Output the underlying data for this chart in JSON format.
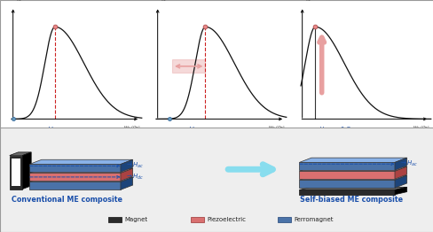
{
  "bg_top": "#ffffff",
  "bg_bot": "#eeeeee",
  "border_color": "#999999",
  "curve_color": "#111111",
  "dashed_color": "#cc2222",
  "arrow_pink": "#e8a0a0",
  "circle_peak_color": "#e88888",
  "circle_base_color": "#6699bb",
  "blue_text": "#1a4faa",
  "conv_label": "Conventional ME composite",
  "self_label": "Self-biased ME composite",
  "legend_magnet": "Magnet",
  "legend_piezo": "Piezoelectric",
  "legend_ferro": "Ferromagnet",
  "piezo_color": "#d97070",
  "ferro_color": "#4a72a8",
  "magnet_dark": "#2a2a2a",
  "magnet_light": "#cccccc",
  "arrow_cyan": "#88ddee"
}
